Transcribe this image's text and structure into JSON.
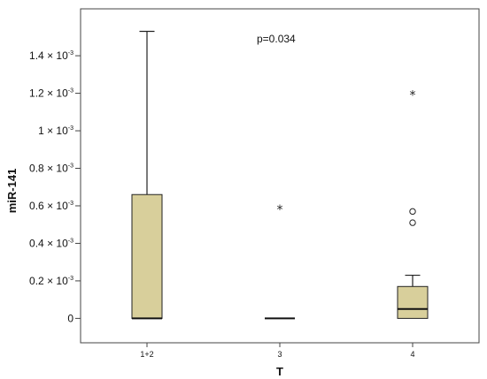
{
  "chart_data": {
    "type": "boxplot",
    "xlabel": "T",
    "ylabel": "miR-141",
    "categories": [
      "1+2",
      "3",
      "4"
    ],
    "y_ticks": [
      {
        "value": 0,
        "label": "0"
      },
      {
        "value": 0.0002,
        "label": "0.2 × 10",
        "exp": "-3"
      },
      {
        "value": 0.0004,
        "label": "0.4 × 10",
        "exp": "-3"
      },
      {
        "value": 0.0006,
        "label": "0.6 × 10",
        "exp": "-3"
      },
      {
        "value": 0.0008,
        "label": "0.8 × 10",
        "exp": "-3"
      },
      {
        "value": 0.001,
        "label": "1 × 10",
        "exp": "-3"
      },
      {
        "value": 0.0012,
        "label": "1.2 × 10",
        "exp": "-3"
      },
      {
        "value": 0.0014,
        "label": "1.4 × 10",
        "exp": "-3"
      }
    ],
    "ylim": [
      -0.00013,
      0.00165
    ],
    "boxes": [
      {
        "category": "1+2",
        "min": 0,
        "q1": 0,
        "median": 0,
        "q3": 0.00066,
        "max": 0.00153,
        "outliers": [],
        "extremes": []
      },
      {
        "category": "3",
        "min": 0,
        "q1": 0,
        "median": 0,
        "q3": 0,
        "max": 0,
        "outliers": [],
        "extremes": [
          0.00059
        ]
      },
      {
        "category": "4",
        "min": 0,
        "q1": 0,
        "median": 5e-05,
        "q3": 0.00017,
        "max": 0.00023,
        "outliers": [
          0.00057,
          0.00051
        ],
        "extremes": [
          0.0012
        ]
      }
    ],
    "annotations": [
      {
        "text": "p=0.034"
      }
    ],
    "grid": false,
    "box_fill": "#d8cf9b",
    "box_stroke": "#222222"
  }
}
